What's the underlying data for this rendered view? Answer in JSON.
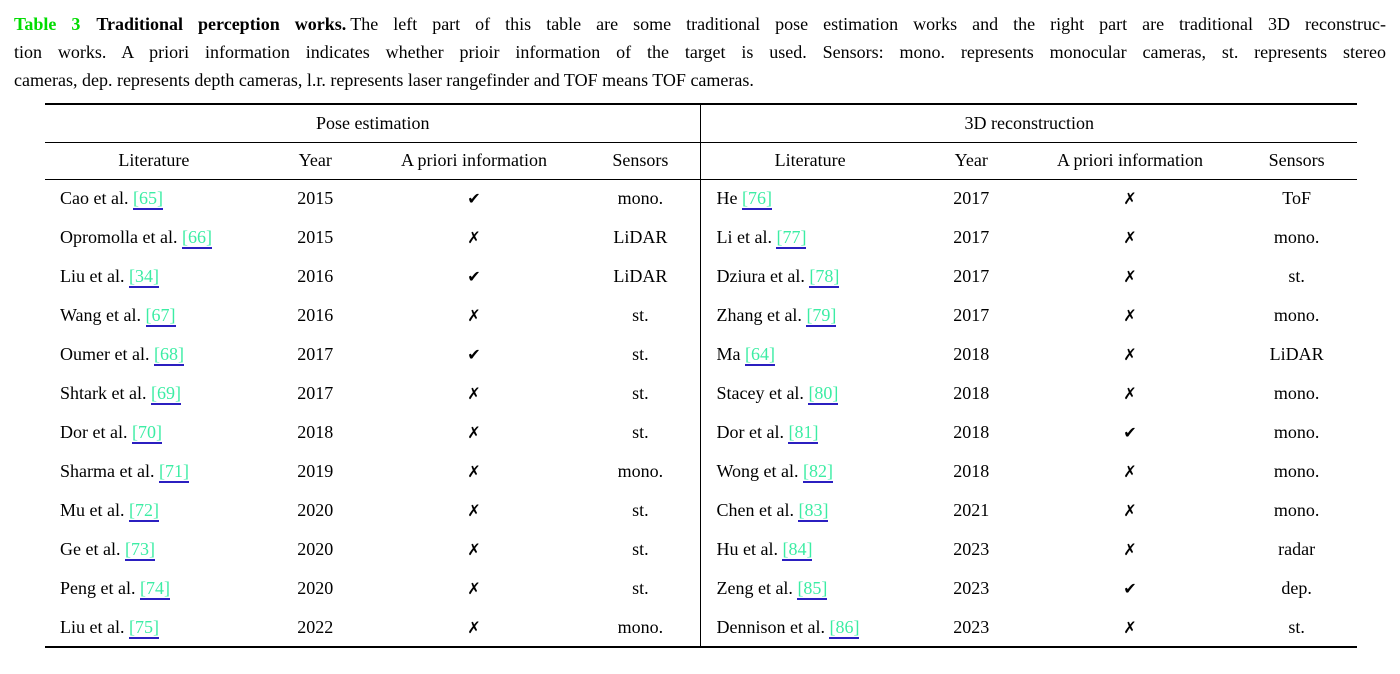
{
  "caption": {
    "label": "Table 3",
    "title": "Traditional perception works.",
    "line1_rest": "The left part of this table are some traditional pose estimation works and the right part are traditional 3D reconstruc-",
    "line2": "tion works. A priori information indicates whether prioir information of the target is used. Sensors: mono. represents monocular cameras, st. represents stereo",
    "line3": "cameras, dep. represents depth cameras, l.r. represents laser rangefinder and TOF means TOF cameras."
  },
  "colors": {
    "table_label_green": "#00dc00",
    "citation_green": "#3ceda4",
    "citation_underline": "#2b1fc0",
    "text": "#000000",
    "background": "#ffffff"
  },
  "glyphs": {
    "check": "✔",
    "cross": "✗"
  },
  "table": {
    "sections": [
      {
        "title": "Pose estimation",
        "columns": [
          "Literature",
          "Year",
          "A priori information",
          "Sensors"
        ],
        "rows": [
          {
            "literature": "Cao et al.",
            "citation": "[65]",
            "year": "2015",
            "a_priori": true,
            "sensors": "mono."
          },
          {
            "literature": "Opromolla et al.",
            "citation": "[66]",
            "year": "2015",
            "a_priori": false,
            "sensors": "LiDAR"
          },
          {
            "literature": "Liu et al.",
            "citation": "[34]",
            "year": "2016",
            "a_priori": true,
            "sensors": "LiDAR"
          },
          {
            "literature": "Wang et al.",
            "citation": "[67]",
            "year": "2016",
            "a_priori": false,
            "sensors": "st."
          },
          {
            "literature": "Oumer et al.",
            "citation": "[68]",
            "year": "2017",
            "a_priori": true,
            "sensors": "st."
          },
          {
            "literature": "Shtark et al.",
            "citation": "[69]",
            "year": "2017",
            "a_priori": false,
            "sensors": "st."
          },
          {
            "literature": "Dor et al.",
            "citation": "[70]",
            "year": "2018",
            "a_priori": false,
            "sensors": "st."
          },
          {
            "literature": "Sharma et al.",
            "citation": "[71]",
            "year": "2019",
            "a_priori": false,
            "sensors": "mono."
          },
          {
            "literature": "Mu et al.",
            "citation": "[72]",
            "year": "2020",
            "a_priori": false,
            "sensors": "st."
          },
          {
            "literature": "Ge et al.",
            "citation": "[73]",
            "year": "2020",
            "a_priori": false,
            "sensors": "st."
          },
          {
            "literature": "Peng et al.",
            "citation": "[74]",
            "year": "2020",
            "a_priori": false,
            "sensors": "st."
          },
          {
            "literature": "Liu et al.",
            "citation": "[75]",
            "year": "2022",
            "a_priori": false,
            "sensors": "mono."
          }
        ]
      },
      {
        "title": "3D reconstruction",
        "columns": [
          "Literature",
          "Year",
          "A priori information",
          "Sensors"
        ],
        "rows": [
          {
            "literature": "He",
            "citation": "[76]",
            "year": "2017",
            "a_priori": false,
            "sensors": "ToF"
          },
          {
            "literature": "Li et al.",
            "citation": "[77]",
            "year": "2017",
            "a_priori": false,
            "sensors": "mono."
          },
          {
            "literature": "Dziura et al.",
            "citation": "[78]",
            "year": "2017",
            "a_priori": false,
            "sensors": "st."
          },
          {
            "literature": "Zhang et al.",
            "citation": "[79]",
            "year": "2017",
            "a_priori": false,
            "sensors": "mono."
          },
          {
            "literature": "Ma",
            "citation": "[64]",
            "year": "2018",
            "a_priori": false,
            "sensors": "LiDAR"
          },
          {
            "literature": "Stacey et al.",
            "citation": "[80]",
            "year": "2018",
            "a_priori": false,
            "sensors": "mono."
          },
          {
            "literature": "Dor et al.",
            "citation": "[81]",
            "year": "2018",
            "a_priori": true,
            "sensors": "mono."
          },
          {
            "literature": "Wong et al.",
            "citation": "[82]",
            "year": "2018",
            "a_priori": false,
            "sensors": "mono."
          },
          {
            "literature": "Chen et al.",
            "citation": "[83]",
            "year": "2021",
            "a_priori": false,
            "sensors": "mono."
          },
          {
            "literature": "Hu et al.",
            "citation": "[84]",
            "year": "2023",
            "a_priori": false,
            "sensors": "radar"
          },
          {
            "literature": "Zeng et al.",
            "citation": "[85]",
            "year": "2023",
            "a_priori": true,
            "sensors": "dep."
          },
          {
            "literature": "Dennison et al.",
            "citation": "[86]",
            "year": "2023",
            "a_priori": false,
            "sensors": "st."
          }
        ]
      }
    ]
  }
}
